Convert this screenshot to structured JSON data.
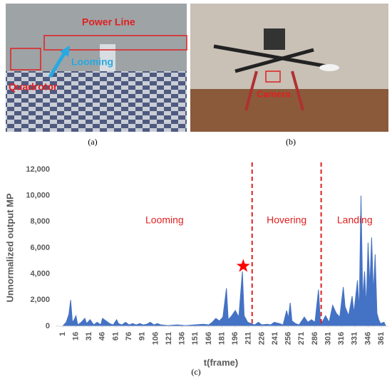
{
  "photos": [
    {
      "label": "(a)",
      "annotations": [
        "Power Line",
        "Looming",
        "Quadrotor"
      ]
    },
    {
      "label": "(b)",
      "annotations": [
        "Camera"
      ]
    }
  ],
  "chart_label": "(c)",
  "chart_data": {
    "type": "area",
    "xlabel": "t(frame)",
    "ylabel": "Unnormalized output MP",
    "color": "#4472c4",
    "x": [
      1,
      5,
      8,
      10,
      12,
      14,
      16,
      18,
      22,
      26,
      28,
      32,
      36,
      40,
      44,
      46,
      50,
      54,
      58,
      62,
      64,
      68,
      72,
      76,
      80,
      84,
      88,
      92,
      96,
      100,
      104,
      108,
      112,
      120,
      130,
      140,
      150,
      160,
      166,
      170,
      174,
      178,
      182,
      186,
      188,
      192,
      196,
      200,
      204,
      206,
      210,
      214,
      218,
      222,
      226,
      232,
      236,
      240,
      246,
      250,
      254,
      256,
      258,
      260,
      264,
      268,
      274,
      278,
      282,
      286,
      290,
      292,
      294,
      298,
      302,
      306,
      310,
      314,
      318,
      320,
      324,
      328,
      330,
      334,
      336,
      338,
      340,
      342,
      344,
      346,
      348,
      350,
      352,
      354,
      356,
      358,
      360,
      364,
      366
    ],
    "values": [
      0,
      300,
      900,
      2000,
      300,
      500,
      800,
      100,
      300,
      600,
      200,
      500,
      100,
      300,
      100,
      600,
      400,
      200,
      100,
      500,
      200,
      100,
      300,
      100,
      200,
      100,
      200,
      100,
      150,
      300,
      100,
      200,
      100,
      50,
      100,
      50,
      100,
      150,
      100,
      300,
      600,
      400,
      700,
      2900,
      500,
      800,
      1200,
      700,
      4200,
      800,
      300,
      200,
      100,
      300,
      100,
      150,
      100,
      300,
      200,
      100,
      1200,
      600,
      1800,
      400,
      200,
      100,
      700,
      300,
      500,
      300,
      2800,
      500,
      300,
      800,
      300,
      1600,
      1000,
      700,
      3000,
      1500,
      800,
      2300,
      1000,
      3500,
      1200,
      10000,
      2000,
      4200,
      1500,
      6400,
      3000,
      6800,
      2500,
      5500,
      1000,
      500,
      200,
      300,
      0
    ],
    "xlim": [
      -7,
      369
    ],
    "xticks": [
      1,
      16,
      31,
      46,
      61,
      76,
      91,
      106,
      121,
      136,
      151,
      166,
      181,
      196,
      211,
      226,
      241,
      256,
      271,
      286,
      301,
      316,
      331,
      346,
      361
    ],
    "ylim": [
      0,
      12000
    ],
    "yticks": [
      0,
      {
        "value": 2000,
        "label": "2,000"
      },
      {
        "value": 4000,
        "label": "4,000"
      },
      {
        "value": 6000,
        "label": "6,000"
      },
      {
        "value": 8000,
        "label": "8,000"
      },
      {
        "value": 10000,
        "label": "10,000"
      },
      {
        "value": 12000,
        "label": "12,000"
      }
    ],
    "dividers": [
      215,
      293
    ],
    "regions": [
      "Looming",
      "Hovering",
      "Landing"
    ],
    "star": {
      "x": 205,
      "y": 4600,
      "color": "#ff0000"
    }
  }
}
